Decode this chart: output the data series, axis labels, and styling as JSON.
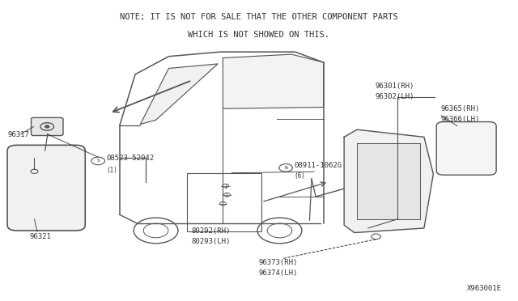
{
  "bg_color": "#ffffff",
  "line_color": "#555555",
  "text_color": "#333333",
  "title_line1": "NOTE; IT IS NOT FOR SALE THAT THE OTHER COMPONENT PARTS",
  "title_line2": "WHICH IS NOT SHOWED ON THIS.",
  "diagram_id": "X963001E",
  "font_size_labels": 6.5,
  "font_size_title": 7.5
}
